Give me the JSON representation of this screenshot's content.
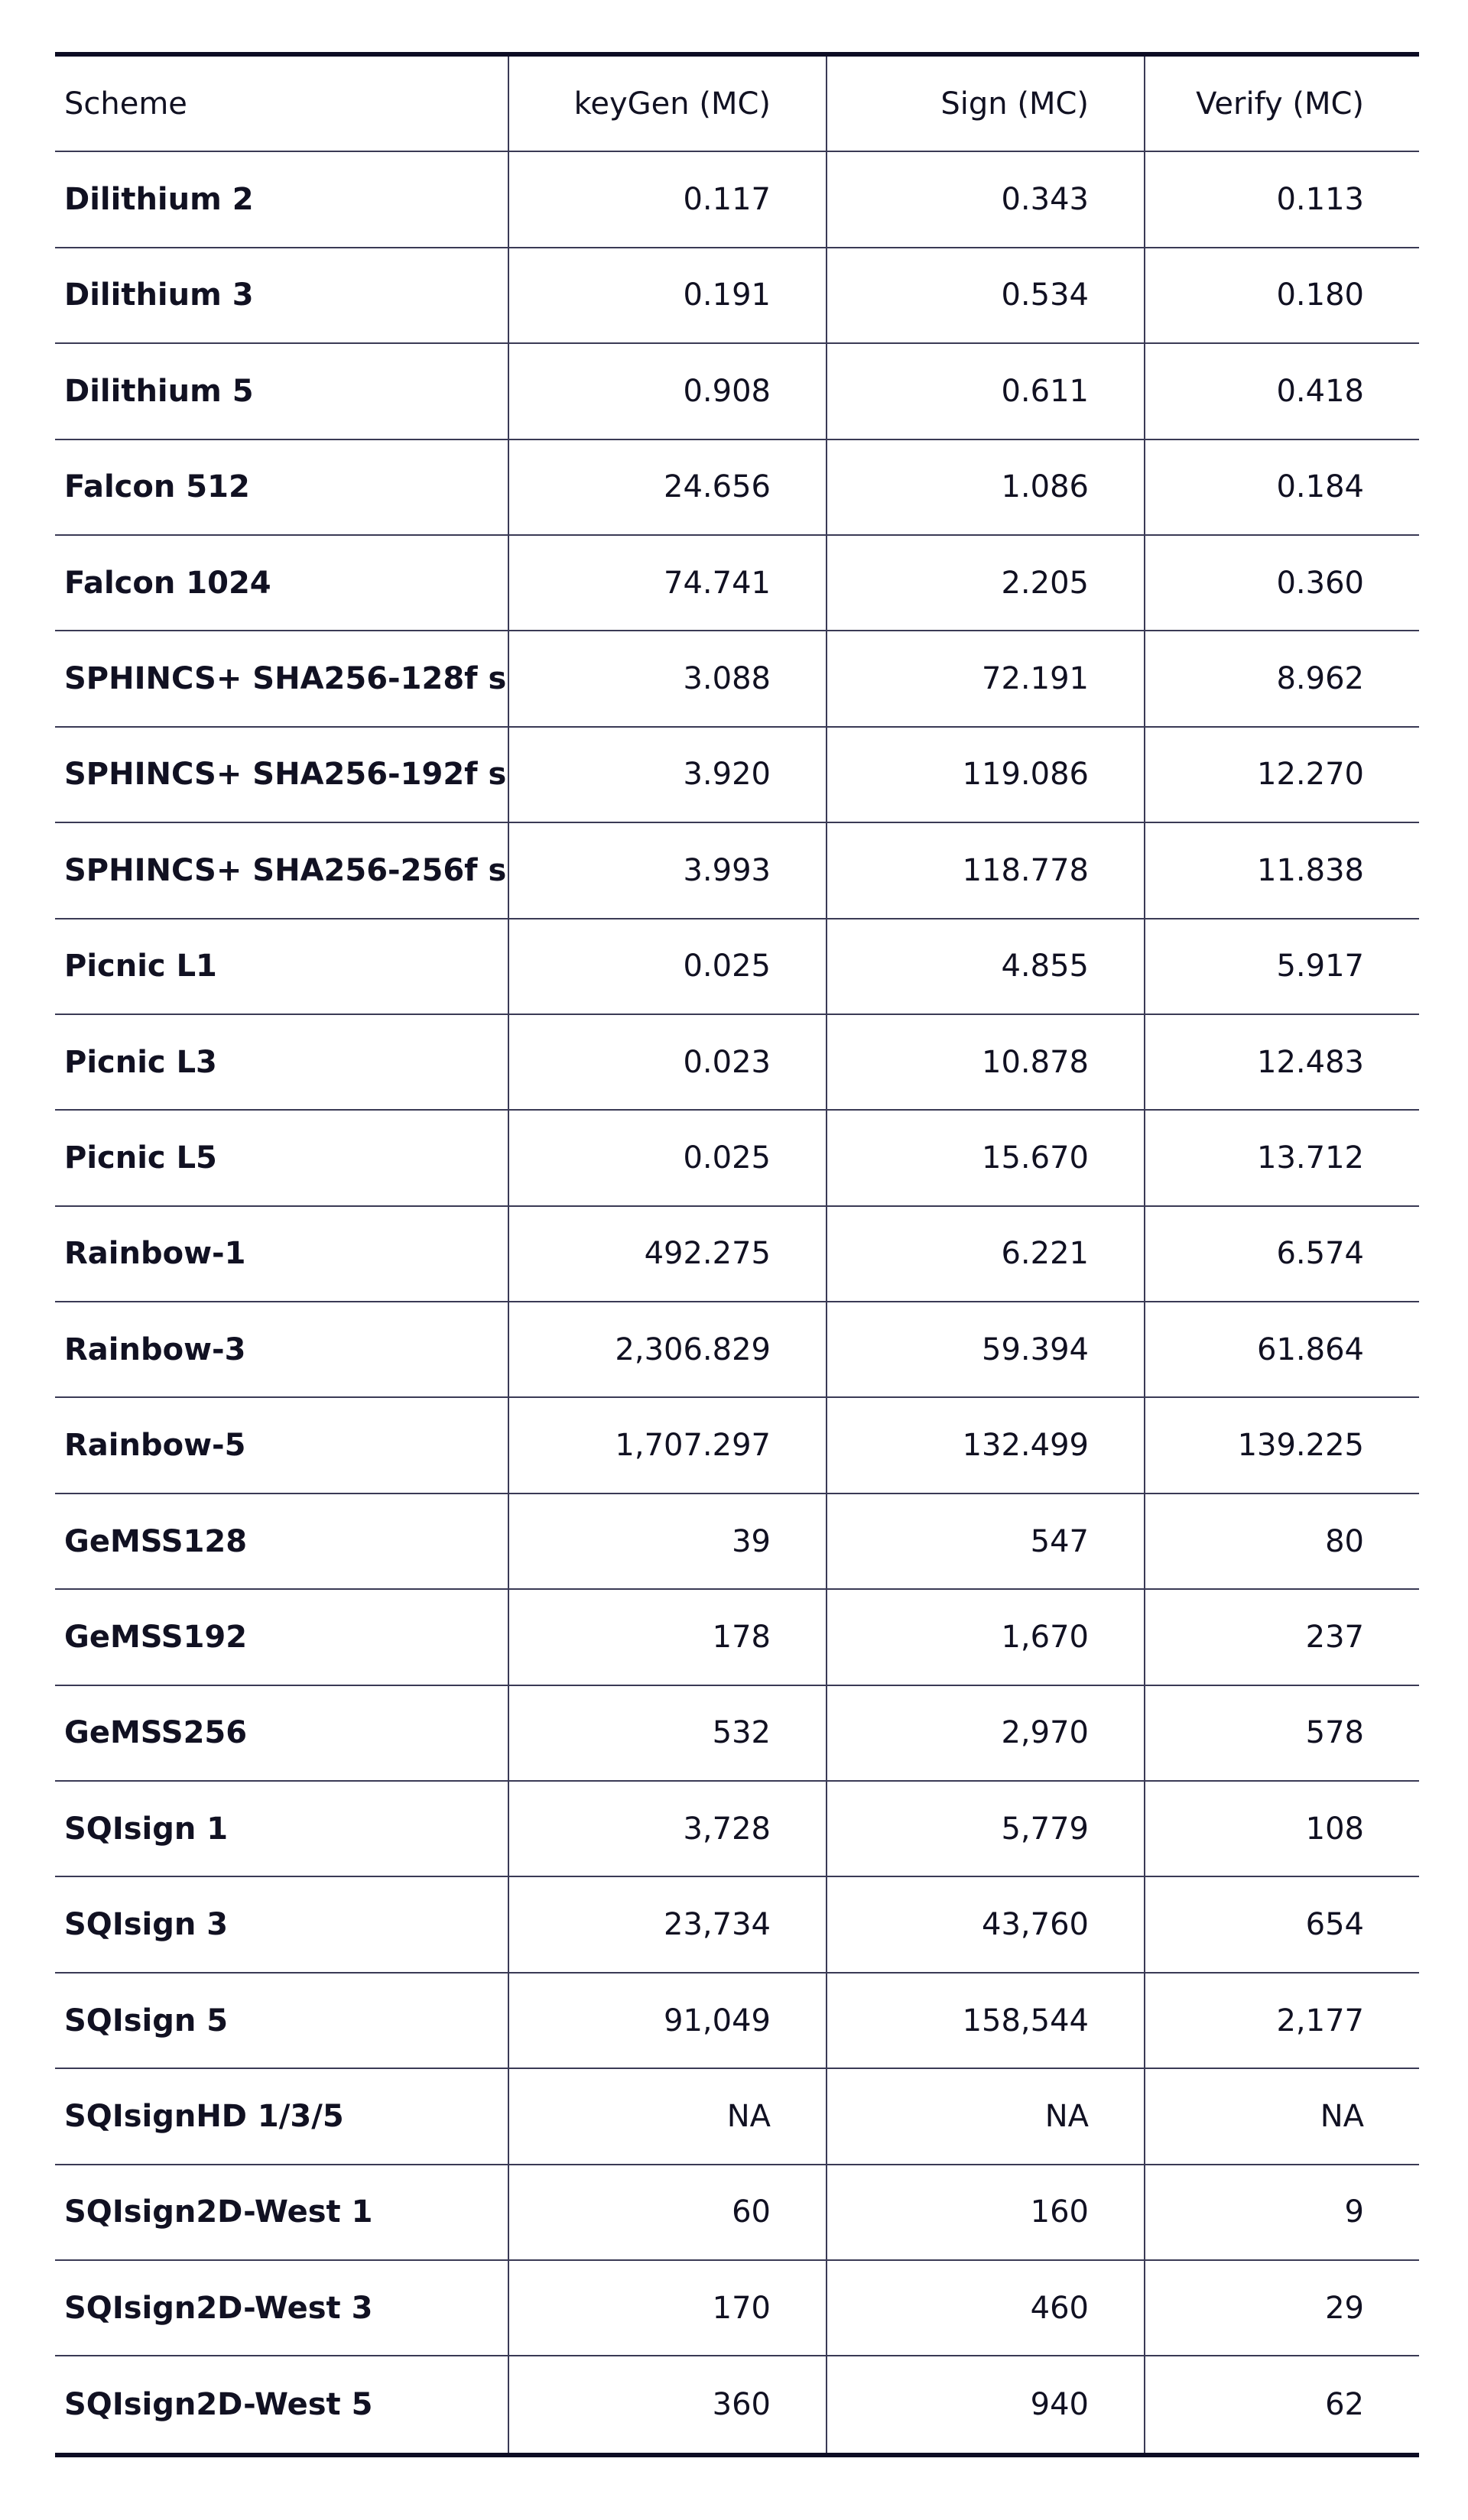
{
  "table": {
    "headers": [
      "Scheme",
      "keyGen (MC)",
      "Sign (MC)",
      "Verify (MC)"
    ],
    "rows": [
      [
        "Dilithium 2",
        "0.117",
        "0.343",
        "0.113"
      ],
      [
        "Dilithium 3",
        "0.191",
        "0.534",
        "0.180"
      ],
      [
        "Dilithium 5",
        "0.908",
        "0.611",
        "0.418"
      ],
      [
        "Falcon 512",
        "24.656",
        "1.086",
        "0.184"
      ],
      [
        "Falcon 1024",
        "74.741",
        "2.205",
        "0.360"
      ],
      [
        "SPHINCS+ SHA256-128f s",
        "3.088",
        "72.191",
        "8.962"
      ],
      [
        "SPHINCS+ SHA256-192f s",
        "3.920",
        "119.086",
        "12.270"
      ],
      [
        "SPHINCS+ SHA256-256f s",
        "3.993",
        "118.778",
        "11.838"
      ],
      [
        "Picnic L1",
        "0.025",
        "4.855",
        "5.917"
      ],
      [
        "Picnic L3",
        "0.023",
        "10.878",
        "12.483"
      ],
      [
        "Picnic L5",
        "0.025",
        "15.670",
        "13.712"
      ],
      [
        "Rainbow-1",
        "492.275",
        "6.221",
        "6.574"
      ],
      [
        "Rainbow-3",
        "2,306.829",
        "59.394",
        "61.864"
      ],
      [
        "Rainbow-5",
        "1,707.297",
        "132.499",
        "139.225"
      ],
      [
        "GeMSS128",
        "39",
        "547",
        "80"
      ],
      [
        "GeMSS192",
        "178",
        "1,670",
        "237"
      ],
      [
        "GeMSS256",
        "532",
        "2,970",
        "578"
      ],
      [
        "SQIsign 1",
        "3,728",
        "5,779",
        "108"
      ],
      [
        "SQIsign 3",
        "23,734",
        "43,760",
        "654"
      ],
      [
        "SQIsign 5",
        "91,049",
        "158,544",
        "2,177"
      ],
      [
        "SQIsignHD 1/3/5",
        "NA",
        "NA",
        "NA"
      ],
      [
        "SQIsign2D-West 1",
        "60",
        "160",
        "9"
      ],
      [
        "SQIsign2D-West 3",
        "170",
        "460",
        "29"
      ],
      [
        "SQIsign2D-West 5",
        "360",
        "940",
        "62"
      ]
    ]
  }
}
